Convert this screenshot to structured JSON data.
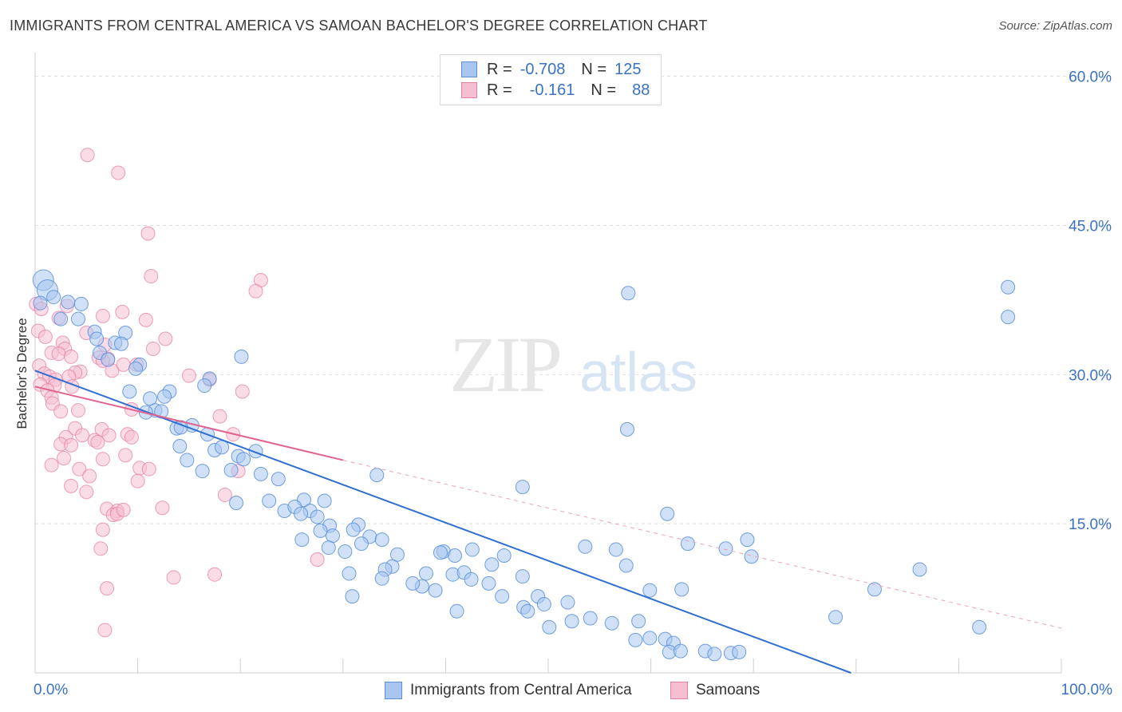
{
  "header": {
    "title": "IMMIGRANTS FROM CENTRAL AMERICA VS SAMOAN BACHELOR'S DEGREE CORRELATION CHART",
    "source": "Source: ZipAtlas.com"
  },
  "watermark": {
    "zip": "ZIP",
    "atlas": "atlas"
  },
  "legend": {
    "rows": [
      {
        "r_label": "R =",
        "r_value": "-0.708",
        "n_label": "N =",
        "n_value": "125",
        "color": "#a8c6f0",
        "border": "#5b8fd8"
      },
      {
        "r_label": "R =",
        "r_value": "-0.161",
        "n_label": "N =",
        "n_value": "88",
        "color": "#f6bfd1",
        "border": "#e57fa3"
      }
    ]
  },
  "bottom_legend": [
    {
      "label": "Immigrants from Central America",
      "color": "#a8c6f0",
      "border": "#5b8fd8"
    },
    {
      "label": "Samoans",
      "color": "#f6bfd1",
      "border": "#e57fa3"
    }
  ],
  "chart_data": {
    "type": "scatter",
    "title": "IMMIGRANTS FROM CENTRAL AMERICA VS SAMOAN BACHELOR'S DEGREE CORRELATION CHART",
    "xlabel": "",
    "ylabel": "Bachelor's Degree",
    "xlim": [
      0,
      100
    ],
    "ylim": [
      0,
      60
    ],
    "x_tick_labels": [
      "0.0%",
      "100.0%"
    ],
    "y_ticks": [
      15,
      30,
      45,
      60
    ],
    "y_tick_labels": [
      "15.0%",
      "30.0%",
      "45.0%",
      "60.0%"
    ],
    "grid": true,
    "legend_position": "top-center",
    "series": [
      {
        "name": "Immigrants from Central America",
        "color": "#5b8fd8",
        "fill": "#a8c6f0",
        "R": -0.708,
        "N": 125,
        "trend": {
          "x": [
            0,
            79.5
          ],
          "y": [
            30.4,
            0
          ]
        },
        "points": [
          [
            0.8,
            39.5
          ],
          [
            1.2,
            38.5
          ],
          [
            1.8,
            37.8
          ],
          [
            0.5,
            37.2
          ],
          [
            3.2,
            37.3
          ],
          [
            4.5,
            37.1
          ],
          [
            2.5,
            35.6
          ],
          [
            4.2,
            35.6
          ],
          [
            5.8,
            34.3
          ],
          [
            8.8,
            34.2
          ],
          [
            6.0,
            33.6
          ],
          [
            7.8,
            33.2
          ],
          [
            8.4,
            33.1
          ],
          [
            6.3,
            32.2
          ],
          [
            7.1,
            31.5
          ],
          [
            10.2,
            31.0
          ],
          [
            9.8,
            30.6
          ],
          [
            20.1,
            31.8
          ],
          [
            17.0,
            29.6
          ],
          [
            16.5,
            28.9
          ],
          [
            13.1,
            28.3
          ],
          [
            9.2,
            28.3
          ],
          [
            11.2,
            27.6
          ],
          [
            12.6,
            27.8
          ],
          [
            11.7,
            26.4
          ],
          [
            10.8,
            26.2
          ],
          [
            12.3,
            26.3
          ],
          [
            15.3,
            24.9
          ],
          [
            13.8,
            24.6
          ],
          [
            14.2,
            24.7
          ],
          [
            16.8,
            24.0
          ],
          [
            14.1,
            22.8
          ],
          [
            17.5,
            22.4
          ],
          [
            18.2,
            22.7
          ],
          [
            21.5,
            22.3
          ],
          [
            14.8,
            21.4
          ],
          [
            19.8,
            21.8
          ],
          [
            20.3,
            21.5
          ],
          [
            16.3,
            20.3
          ],
          [
            19.1,
            20.4
          ],
          [
            22.0,
            20.0
          ],
          [
            23.7,
            19.5
          ],
          [
            33.3,
            19.9
          ],
          [
            47.5,
            18.7
          ],
          [
            26.2,
            17.4
          ],
          [
            28.2,
            17.3
          ],
          [
            22.8,
            17.3
          ],
          [
            19.6,
            17.1
          ],
          [
            24.3,
            16.3
          ],
          [
            25.3,
            16.7
          ],
          [
            26.8,
            16.3
          ],
          [
            25.9,
            16.0
          ],
          [
            27.5,
            15.7
          ],
          [
            28.7,
            14.8
          ],
          [
            31.5,
            14.9
          ],
          [
            31.0,
            14.4
          ],
          [
            26.0,
            13.4
          ],
          [
            29.0,
            13.8
          ],
          [
            27.8,
            14.3
          ],
          [
            32.6,
            13.7
          ],
          [
            33.8,
            13.4
          ],
          [
            31.8,
            13.0
          ],
          [
            28.6,
            12.6
          ],
          [
            42.6,
            12.4
          ],
          [
            39.8,
            12.2
          ],
          [
            30.2,
            12.2
          ],
          [
            35.3,
            11.9
          ],
          [
            39.5,
            12.1
          ],
          [
            40.9,
            11.8
          ],
          [
            45.7,
            11.8
          ],
          [
            53.6,
            12.7
          ],
          [
            56.6,
            12.4
          ],
          [
            61.6,
            16.0
          ],
          [
            63.6,
            13.0
          ],
          [
            67.3,
            12.5
          ],
          [
            69.4,
            13.4
          ],
          [
            69.8,
            11.7
          ],
          [
            34.8,
            10.7
          ],
          [
            30.6,
            10.0
          ],
          [
            40.7,
            9.9
          ],
          [
            38.1,
            10.0
          ],
          [
            34.1,
            10.4
          ],
          [
            37.7,
            8.7
          ],
          [
            44.5,
            10.9
          ],
          [
            47.5,
            9.7
          ],
          [
            57.6,
            10.8
          ],
          [
            59.9,
            8.3
          ],
          [
            33.8,
            9.5
          ],
          [
            36.8,
            9.0
          ],
          [
            41.8,
            10.1
          ],
          [
            42.5,
            9.4
          ],
          [
            30.9,
            7.7
          ],
          [
            39.0,
            8.3
          ],
          [
            41.1,
            6.2
          ],
          [
            45.5,
            7.7
          ],
          [
            44.2,
            9.0
          ],
          [
            49.0,
            7.7
          ],
          [
            51.9,
            7.1
          ],
          [
            47.6,
            6.6
          ],
          [
            49.6,
            6.9
          ],
          [
            48.0,
            6.2
          ],
          [
            54.1,
            5.5
          ],
          [
            50.1,
            4.6
          ],
          [
            52.3,
            5.2
          ],
          [
            56.2,
            5.0
          ],
          [
            58.8,
            5.2
          ],
          [
            58.5,
            3.3
          ],
          [
            59.9,
            3.5
          ],
          [
            61.4,
            3.4
          ],
          [
            62.2,
            3.0
          ],
          [
            61.8,
            2.1
          ],
          [
            65.3,
            2.2
          ],
          [
            66.2,
            1.9
          ],
          [
            67.8,
            2.0
          ],
          [
            68.6,
            2.1
          ],
          [
            62.9,
            2.2
          ],
          [
            78.0,
            5.6
          ],
          [
            81.8,
            8.4
          ],
          [
            86.2,
            10.4
          ],
          [
            92.0,
            4.6
          ],
          [
            94.8,
            35.8
          ],
          [
            94.8,
            38.8
          ],
          [
            57.8,
            38.2
          ],
          [
            57.7,
            24.5
          ],
          [
            63.0,
            8.4
          ]
        ]
      },
      {
        "name": "Samoans",
        "color": "#e57fa3",
        "fill": "#f6bfd1",
        "R": -0.161,
        "N": 88,
        "trend_solid": {
          "x": [
            0,
            30
          ],
          "y": [
            28.8,
            21.4
          ]
        },
        "trend_dashed": {
          "x": [
            30,
            100
          ],
          "y": [
            21.4,
            4.5
          ]
        },
        "points": [
          [
            5.1,
            52.1
          ],
          [
            8.1,
            50.3
          ],
          [
            11.0,
            44.2
          ],
          [
            11.3,
            39.9
          ],
          [
            22.0,
            39.5
          ],
          [
            21.5,
            38.4
          ],
          [
            0.1,
            37.1
          ],
          [
            0.6,
            36.6
          ],
          [
            3.1,
            36.9
          ],
          [
            6.6,
            35.9
          ],
          [
            8.5,
            36.3
          ],
          [
            10.8,
            35.5
          ],
          [
            2.3,
            35.7
          ],
          [
            0.3,
            34.4
          ],
          [
            5.0,
            34.2
          ],
          [
            1.0,
            33.8
          ],
          [
            2.7,
            33.2
          ],
          [
            6.8,
            33.0
          ],
          [
            12.7,
            33.6
          ],
          [
            2.9,
            32.6
          ],
          [
            11.5,
            32.6
          ],
          [
            1.6,
            32.2
          ],
          [
            2.3,
            32.1
          ],
          [
            3.5,
            31.8
          ],
          [
            6.2,
            31.7
          ],
          [
            7.1,
            31.6
          ],
          [
            9.9,
            31.0
          ],
          [
            0.4,
            30.9
          ],
          [
            4.4,
            30.3
          ],
          [
            7.5,
            30.4
          ],
          [
            3.9,
            30.2
          ],
          [
            0.9,
            30.1
          ],
          [
            1.4,
            29.8
          ],
          [
            2.0,
            29.5
          ],
          [
            3.3,
            29.8
          ],
          [
            15.0,
            29.9
          ],
          [
            17.0,
            29.5
          ],
          [
            0.5,
            29.0
          ],
          [
            1.9,
            28.9
          ],
          [
            3.6,
            28.8
          ],
          [
            20.2,
            28.3
          ],
          [
            1.2,
            28.4
          ],
          [
            1.6,
            27.7
          ],
          [
            1.7,
            27.1
          ],
          [
            2.5,
            26.3
          ],
          [
            4.2,
            26.4
          ],
          [
            9.4,
            26.5
          ],
          [
            3.9,
            24.6
          ],
          [
            6.5,
            24.5
          ],
          [
            9.0,
            24.0
          ],
          [
            3.0,
            23.7
          ],
          [
            4.6,
            23.9
          ],
          [
            7.2,
            23.9
          ],
          [
            9.4,
            23.7
          ],
          [
            19.3,
            24.0
          ],
          [
            2.5,
            23.0
          ],
          [
            5.8,
            23.4
          ],
          [
            6.1,
            23.2
          ],
          [
            3.5,
            22.9
          ],
          [
            8.8,
            21.9
          ],
          [
            6.6,
            21.5
          ],
          [
            1.6,
            20.9
          ],
          [
            2.8,
            21.6
          ],
          [
            10.2,
            20.6
          ],
          [
            11.1,
            20.5
          ],
          [
            4.3,
            20.5
          ],
          [
            5.3,
            19.8
          ],
          [
            10.0,
            19.3
          ],
          [
            3.5,
            18.8
          ],
          [
            5.0,
            18.2
          ],
          [
            19.8,
            20.3
          ],
          [
            18.5,
            17.9
          ],
          [
            7.0,
            16.5
          ],
          [
            8.0,
            16.3
          ],
          [
            7.6,
            15.9
          ],
          [
            8.0,
            16.0
          ],
          [
            8.6,
            16.4
          ],
          [
            12.4,
            16.6
          ],
          [
            6.6,
            14.4
          ],
          [
            6.4,
            12.5
          ],
          [
            13.5,
            9.6
          ],
          [
            7.0,
            8.5
          ],
          [
            17.5,
            9.9
          ],
          [
            27.5,
            11.4
          ],
          [
            6.8,
            4.3
          ],
          [
            18.0,
            25.8
          ],
          [
            8.6,
            31.0
          ],
          [
            6.6,
            31.4
          ]
        ]
      }
    ]
  }
}
